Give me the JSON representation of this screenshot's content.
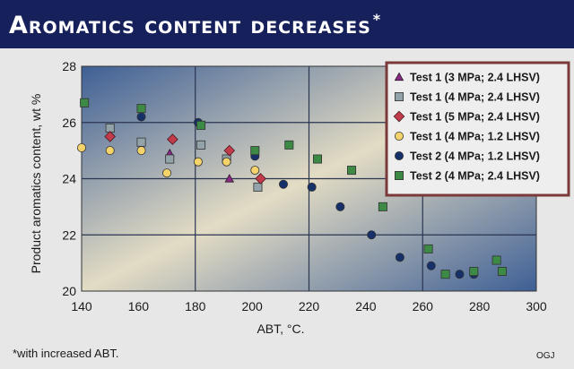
{
  "header": {
    "title": "Aromatics content decreases",
    "title_mark": "*"
  },
  "footnote": "*with increased ABT.",
  "credit": "OGJ",
  "colors": {
    "header_bg": "#16205a",
    "plot_top_left": "#3e5f95",
    "plot_center": "#e3dcc4",
    "plot_bottom_right": "#3e5f95",
    "legend_border": "#7a3a3a",
    "legend_bg": "#eeeeee"
  },
  "chart_data": {
    "type": "scatter",
    "xlabel": "ABT, °C.",
    "ylabel": "Product aromatics content, wt %",
    "xlim": [
      140,
      300
    ],
    "ylim": [
      20,
      28
    ],
    "xticks": [
      140,
      160,
      180,
      200,
      220,
      240,
      260,
      280,
      300
    ],
    "yticks": [
      20,
      22,
      24,
      26,
      28
    ],
    "grid": true,
    "legend_position": "top-right",
    "series": [
      {
        "name": "Test 1 (3 MPa; 2.4 LHSV)",
        "marker": "triangle",
        "color": "#8a2a82",
        "points": [
          [
            171,
            24.9
          ],
          [
            192,
            24.0
          ]
        ]
      },
      {
        "name": "Test 1 (4 MPa; 2.4 LHSV)",
        "marker": "square",
        "color": "#93a3aa",
        "points": [
          [
            150,
            25.8
          ],
          [
            161,
            25.3
          ],
          [
            171,
            24.7
          ],
          [
            182,
            25.2
          ],
          [
            191,
            24.7
          ],
          [
            202,
            23.7
          ]
        ]
      },
      {
        "name": "Test 1 (5 MPa; 2.4 LHSV)",
        "marker": "diamond",
        "color": "#c23b4a",
        "points": [
          [
            150,
            25.5
          ],
          [
            172,
            25.4
          ],
          [
            192,
            25.0
          ],
          [
            203,
            24.0
          ]
        ]
      },
      {
        "name": "Test 1 (4 MPa; 1.2 LHSV)",
        "marker": "circle",
        "color": "#f3d36a",
        "points": [
          [
            140,
            25.1
          ],
          [
            150,
            25.0
          ],
          [
            161,
            25.0
          ],
          [
            170,
            24.2
          ],
          [
            181,
            24.6
          ],
          [
            191,
            24.6
          ],
          [
            201,
            24.3
          ]
        ]
      },
      {
        "name": "Test 2 (4 MPa; 1.2 LHSV)",
        "marker": "circle",
        "color": "#16306a",
        "points": [
          [
            141,
            26.7
          ],
          [
            161,
            26.2
          ],
          [
            181,
            26.0
          ],
          [
            201,
            24.8
          ],
          [
            211,
            23.8
          ],
          [
            221,
            23.7
          ],
          [
            231,
            23.0
          ],
          [
            242,
            22.0
          ],
          [
            252,
            21.2
          ],
          [
            263,
            20.9
          ],
          [
            273,
            20.6
          ],
          [
            278,
            20.6
          ]
        ]
      },
      {
        "name": "Test 2 (4 MPa; 2.4 LHSV)",
        "marker": "square",
        "color": "#3c8a46",
        "points": [
          [
            141,
            26.7
          ],
          [
            161,
            26.5
          ],
          [
            182,
            25.9
          ],
          [
            201,
            25.0
          ],
          [
            213,
            25.2
          ],
          [
            223,
            24.7
          ],
          [
            235,
            24.3
          ],
          [
            246,
            23.0
          ],
          [
            262,
            21.5
          ],
          [
            268,
            20.6
          ],
          [
            278,
            20.7
          ],
          [
            286,
            21.1
          ],
          [
            288,
            20.7
          ]
        ]
      }
    ]
  }
}
